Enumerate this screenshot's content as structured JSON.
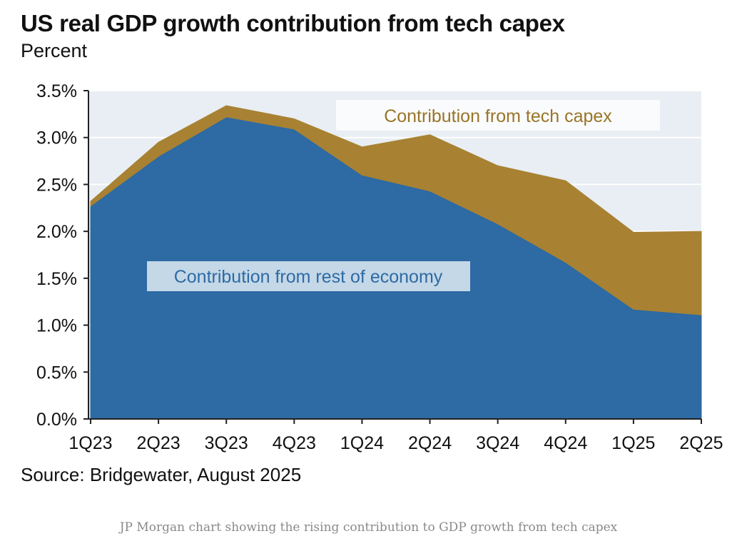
{
  "chart_data": {
    "type": "area",
    "stacked": true,
    "title": "US real GDP growth contribution from tech capex",
    "subtitle": "Percent",
    "categories": [
      "1Q23",
      "2Q23",
      "3Q23",
      "4Q23",
      "1Q24",
      "2Q24",
      "3Q24",
      "4Q24",
      "1Q25",
      "2Q25"
    ],
    "series": [
      {
        "name": "Contribution from rest of economy",
        "color": "#2e6aa3",
        "values": [
          2.27,
          2.8,
          3.22,
          3.09,
          2.6,
          2.43,
          2.08,
          1.67,
          1.17,
          1.11
        ]
      },
      {
        "name": "Contribution from tech capex",
        "color": "#a88232",
        "values": [
          0.05,
          0.15,
          0.12,
          0.11,
          0.3,
          0.6,
          0.62,
          0.87,
          0.82,
          0.89
        ]
      }
    ],
    "ylim": [
      0,
      3.5
    ],
    "yticks": [
      "0.0%",
      "0.5%",
      "1.0%",
      "1.5%",
      "2.0%",
      "2.5%",
      "3.0%",
      "3.5%"
    ],
    "grid": true,
    "plot_background": "#e8eef3",
    "source": "Source: Bridgewater, August 2025"
  },
  "caption": "JP Morgan chart showing the rising contribution to GDP growth from tech capex"
}
